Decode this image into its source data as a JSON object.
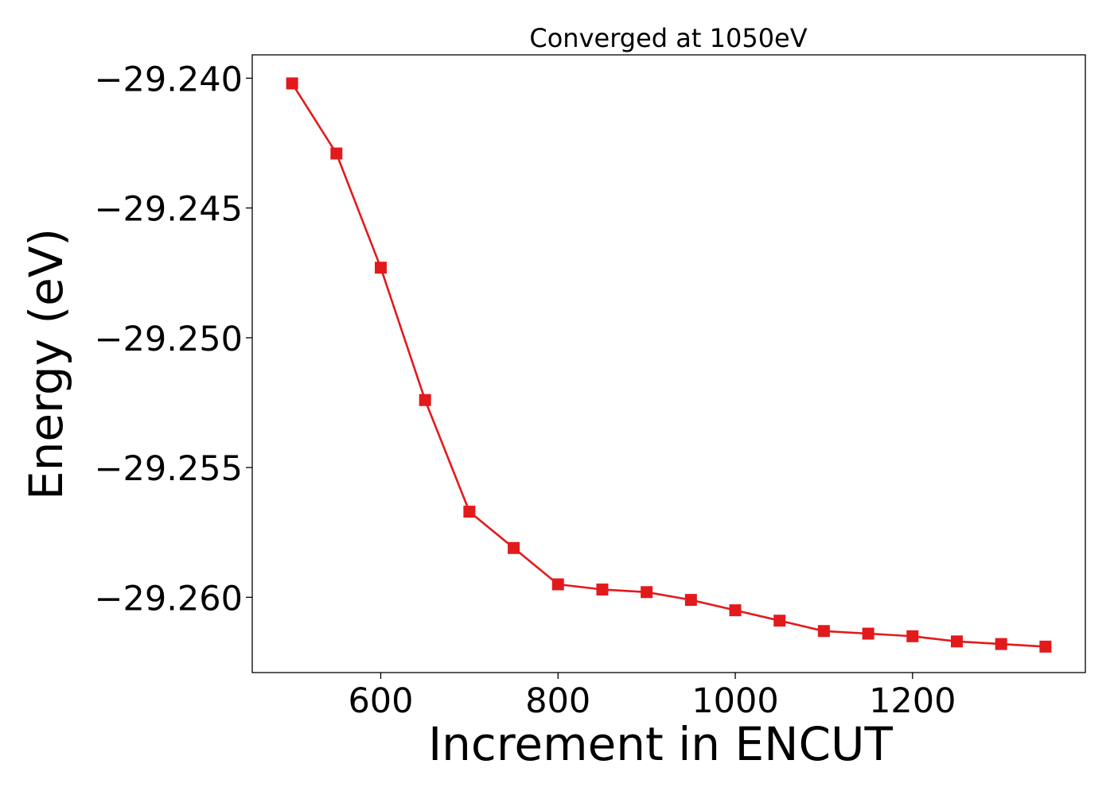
{
  "chart_data": {
    "type": "line",
    "title": "Converged at 1050eV",
    "xlabel": "Increment in ENCUT",
    "ylabel": "Energy (eV)",
    "xlim": [
      455,
      1395
    ],
    "ylim": [
      -29.2629,
      -29.2391
    ],
    "x_ticks": [
      600,
      800,
      1000,
      1200
    ],
    "x_tick_labels": [
      "600",
      "800",
      "1000",
      "1200"
    ],
    "y_ticks": [
      -29.24,
      -29.245,
      -29.25,
      -29.255,
      -29.26
    ],
    "y_tick_labels": [
      "−29.240",
      "−29.245",
      "−29.250",
      "−29.255",
      "−29.260"
    ],
    "grid": false,
    "series": [
      {
        "color": "#e31a1c",
        "marker": "square",
        "x": [
          500,
          550,
          600,
          650,
          700,
          750,
          800,
          850,
          900,
          950,
          1000,
          1050,
          1100,
          1150,
          1200,
          1250,
          1300,
          1350
        ],
        "y": [
          -29.2402,
          -29.2429,
          -29.2473,
          -29.2524,
          -29.2567,
          -29.2581,
          -29.2595,
          -29.2597,
          -29.2598,
          -29.2601,
          -29.2605,
          -29.2609,
          -29.2613,
          -29.2614,
          -29.2615,
          -29.2617,
          -29.2618,
          -29.2619
        ]
      }
    ]
  }
}
